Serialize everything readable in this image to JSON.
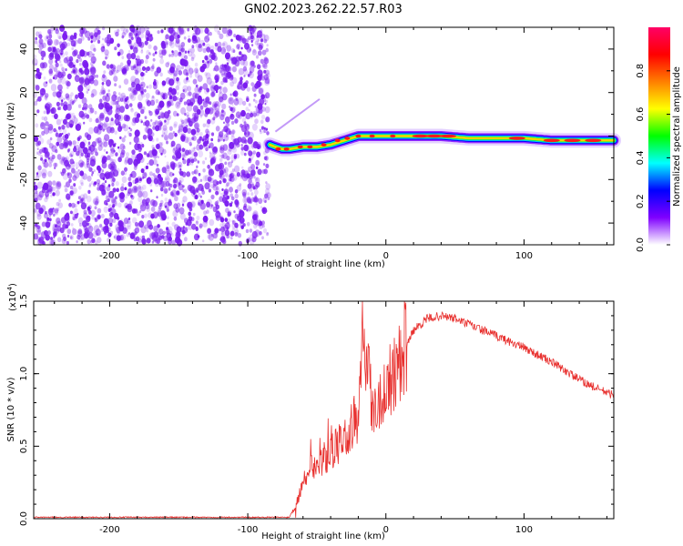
{
  "title": "GN02.2023.262.22.57.R03",
  "colors": {
    "snr_line": "#e8312f",
    "scatter_purple": "#7b1cf0",
    "axis": "#000000"
  },
  "chart_data": [
    {
      "type": "heatmap",
      "xlabel": "Height of straight line (km)",
      "ylabel": "Frequency (Hz)",
      "xlim": [
        -255,
        165
      ],
      "ylim": [
        -50,
        50
      ],
      "x_ticks": [
        -200,
        -100,
        0,
        100
      ],
      "x_tick_labels": [
        "-200",
        "-100",
        "0",
        "100"
      ],
      "y_ticks": [
        -40,
        -20,
        0,
        20,
        40
      ],
      "y_tick_labels": [
        "-40",
        "-20",
        "0",
        "20",
        "40"
      ],
      "noise_region": {
        "x_from": -255,
        "x_to": -84
      },
      "ridge": {
        "x": [
          -84,
          -80,
          -75,
          -70,
          -60,
          -50,
          -40,
          -30,
          -20,
          -10,
          0,
          20,
          40,
          60,
          80,
          100,
          120,
          140,
          165
        ],
        "y": [
          -4,
          -5,
          -6,
          -6,
          -5,
          -5,
          -4,
          -2,
          0,
          0,
          0,
          0,
          0,
          -1,
          -1,
          -1,
          -2,
          -2,
          -2
        ]
      },
      "streak": {
        "x": [
          -80,
          -48
        ],
        "y": [
          2,
          17
        ]
      },
      "colorbar": {
        "label": "Normalized spectral amplitude",
        "range": [
          0,
          1
        ],
        "ticks": [
          0.0,
          0.2,
          0.4,
          0.6,
          0.8
        ],
        "tick_labels": [
          "0.0",
          "0.2",
          "0.4",
          "0.6",
          "0.8"
        ],
        "colormap": [
          "#ffffff",
          "#7f00ff",
          "#0000ff",
          "#00ffff",
          "#00ff00",
          "#ffff00",
          "#ff7f00",
          "#ff0000",
          "#ff0066"
        ]
      }
    },
    {
      "type": "line",
      "xlabel": "Height of straight line (km)",
      "ylabel": "SNR (10 * v/v)",
      "scale_label": "(x10",
      "scale_exponent": "4",
      "scale_suffix": ")",
      "xlim": [
        -255,
        165
      ],
      "ylim": [
        0,
        1.5
      ],
      "x_ticks": [
        -200,
        -100,
        0,
        100
      ],
      "x_tick_labels": [
        "-200",
        "-100",
        "0",
        "100"
      ],
      "y_ticks": [
        0.0,
        0.5,
        1.0,
        1.5
      ],
      "y_tick_labels": [
        "0.0",
        "0.5",
        "1.0",
        "1.5"
      ],
      "series": [
        {
          "x": [
            -255,
            -100,
            -70,
            -65,
            -60,
            -50,
            -40,
            -30,
            -20,
            -17,
            -10,
            0,
            10,
            20,
            30,
            40,
            50,
            60,
            70,
            80,
            90,
            100,
            110,
            120,
            130,
            140,
            150,
            160,
            165
          ],
          "y": [
            0.01,
            0.01,
            0.01,
            0.1,
            0.25,
            0.35,
            0.45,
            0.55,
            0.7,
            1.45,
            0.75,
            0.9,
            1.1,
            1.3,
            1.38,
            1.4,
            1.38,
            1.34,
            1.3,
            1.26,
            1.22,
            1.18,
            1.13,
            1.08,
            1.02,
            0.96,
            0.91,
            0.87,
            0.85
          ]
        }
      ]
    }
  ]
}
